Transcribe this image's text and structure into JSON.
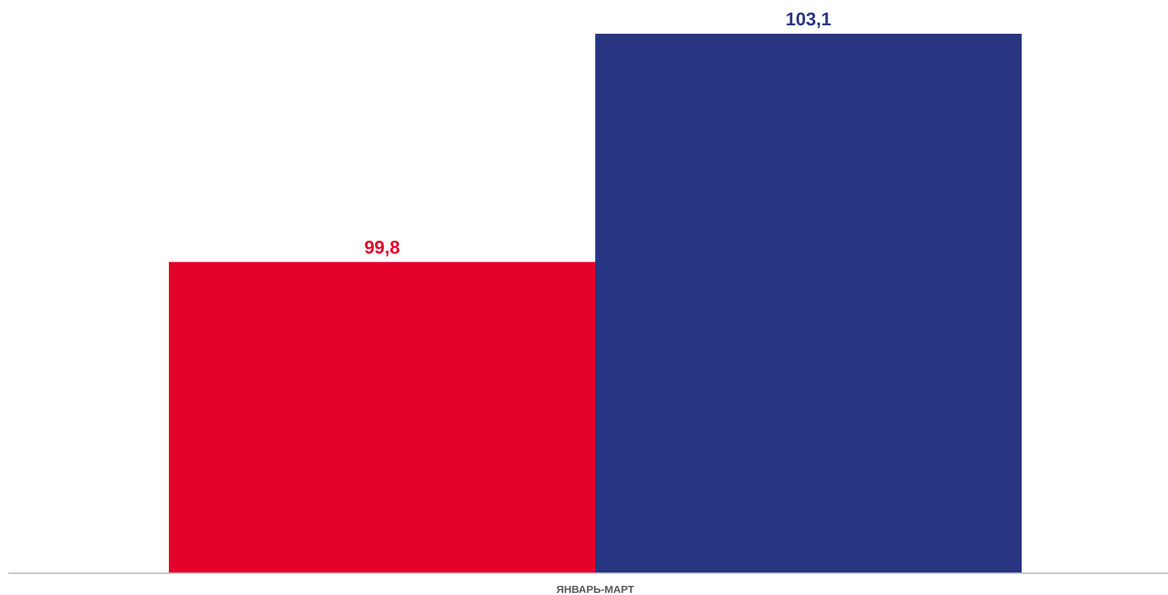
{
  "chart_data": {
    "type": "bar",
    "categories": [
      "ЯНВАРЬ-МАРТ"
    ],
    "series": [
      {
        "values": [
          99.8
        ],
        "label": "99,8",
        "color": "#E3002B"
      },
      {
        "values": [
          103.1
        ],
        "label": "103,1",
        "color": "#283583"
      }
    ],
    "title": "",
    "xlabel": "",
    "ylabel": "",
    "ylim": [
      95.3,
      103.1
    ],
    "grid": false,
    "axis_color": "#BFBFBF",
    "category_label_color": "#595959"
  }
}
